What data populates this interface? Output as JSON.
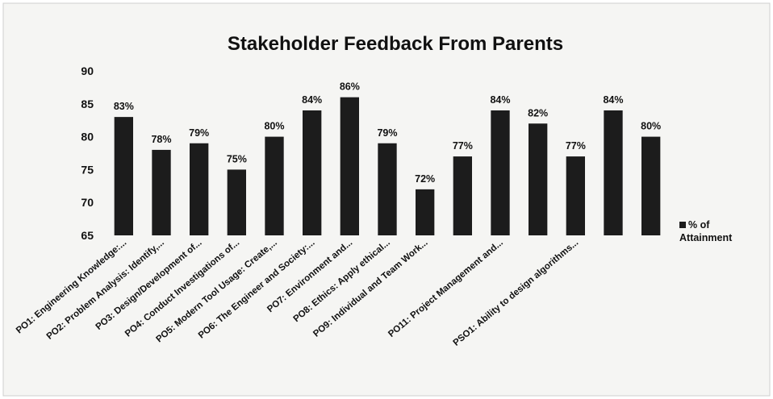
{
  "chart_data": {
    "type": "bar",
    "title": "Stakeholder Feedback From Parents",
    "categories": [
      "PO1: Engineering Knowledge:...",
      "PO2: Problem Analysis: Identify,...",
      "PO3: Design/Development of...",
      "PO4: Conduct Investigations of...",
      "PO5: Modern Tool Usage: Create,...",
      "PO6: The Engineer and Society:...",
      "PO7: Environment and...",
      "PO8: Ethics: Apply ethical...",
      "PO9: Individual and Team Work...",
      null,
      "PO11: Project Management and...",
      null,
      "PSO1: Ability to design algorithms...",
      null,
      null
    ],
    "series": [
      {
        "name": "% of Attainment",
        "color": "#1c1c1c",
        "values": [
          83,
          78,
          79,
          75,
          80,
          84,
          86,
          79,
          72,
          77,
          84,
          82,
          77,
          84,
          80
        ],
        "value_labels": [
          "83%",
          "78%",
          "79%",
          "75%",
          "80%",
          "84%",
          "86%",
          "79%",
          "72%",
          "77%",
          "84%",
          "82%",
          "77%",
          "84%",
          "80%"
        ]
      }
    ],
    "ylim": [
      65,
      90
    ],
    "yticks": [
      65,
      70,
      75,
      80,
      85,
      90
    ],
    "grid": false,
    "legend": "right"
  }
}
